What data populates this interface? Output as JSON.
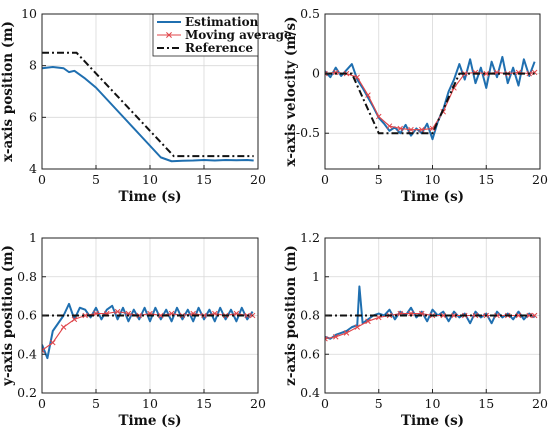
{
  "colors": {
    "estimation": "#1f6fb0",
    "moving_average": "#e0454a",
    "reference": "#111111",
    "grid": "#d8d8d8"
  },
  "legend": {
    "items": [
      {
        "label": "Estimation",
        "style": "solid-blue"
      },
      {
        "label": "Moving average",
        "style": "red-cross-line"
      },
      {
        "label": "Reference",
        "style": "black-dash-dot"
      }
    ]
  },
  "chart_data": [
    {
      "type": "line",
      "xlabel": "Time (s)",
      "ylabel": "x-axis position (m)",
      "xlim": [
        0,
        20
      ],
      "ylim": [
        4,
        10
      ],
      "xticks": [
        0,
        5,
        10,
        15,
        20
      ],
      "yticks": [
        4,
        6,
        8,
        10
      ],
      "grid": true,
      "legend_position": "top-right",
      "series": [
        {
          "name": "Estimation",
          "x": [
            0,
            1,
            2,
            2.5,
            3,
            4,
            5,
            6,
            7,
            8,
            9,
            10,
            11,
            12,
            13,
            14,
            15,
            16,
            17,
            18,
            19,
            19.6
          ],
          "values": [
            7.9,
            7.95,
            7.9,
            7.75,
            7.8,
            7.5,
            7.15,
            6.7,
            6.25,
            5.8,
            5.35,
            4.9,
            4.45,
            4.3,
            4.32,
            4.33,
            4.35,
            4.33,
            4.35,
            4.34,
            4.35,
            4.33
          ]
        },
        {
          "name": "Reference",
          "x": [
            0,
            3.2,
            12.2,
            19.6
          ],
          "values": [
            8.5,
            8.5,
            4.5,
            4.5
          ]
        }
      ]
    },
    {
      "type": "line",
      "xlabel": "Time (s)",
      "ylabel": "x-axis velocity (m/s)",
      "xlim": [
        0,
        20
      ],
      "ylim": [
        -0.8,
        0.5
      ],
      "xticks": [
        0,
        5,
        10,
        15,
        20
      ],
      "yticks": [
        -0.5,
        0,
        0.5
      ],
      "grid": true,
      "series": [
        {
          "name": "Estimation",
          "x": [
            0,
            0.5,
            1,
            1.5,
            2,
            2.5,
            3,
            3.5,
            4,
            4.5,
            5,
            5.5,
            6,
            6.5,
            7,
            7.5,
            8,
            8.5,
            9,
            9.5,
            10,
            10.5,
            11,
            11.5,
            12,
            12.5,
            13,
            13.5,
            14,
            14.5,
            15,
            15.5,
            16,
            16.5,
            17,
            17.5,
            18,
            18.5,
            19,
            19.5
          ],
          "values": [
            0.02,
            -0.03,
            0.05,
            -0.02,
            0.03,
            0.08,
            -0.05,
            -0.12,
            -0.2,
            -0.28,
            -0.37,
            -0.42,
            -0.48,
            -0.45,
            -0.5,
            -0.43,
            -0.52,
            -0.46,
            -0.5,
            -0.42,
            -0.55,
            -0.4,
            -0.3,
            -0.15,
            -0.05,
            0.08,
            -0.05,
            0.12,
            -0.08,
            0.05,
            -0.12,
            0.1,
            -0.03,
            0.14,
            -0.08,
            0.05,
            -0.1,
            0.12,
            -0.02,
            0.1
          ]
        },
        {
          "name": "Moving average",
          "x": [
            0,
            1,
            2,
            3,
            4,
            5,
            6,
            7,
            8,
            9,
            10,
            11,
            12,
            13,
            14,
            15,
            16,
            17,
            18,
            19,
            19.5
          ],
          "values": [
            0,
            0.01,
            0,
            -0.03,
            -0.18,
            -0.36,
            -0.44,
            -0.46,
            -0.47,
            -0.47,
            -0.46,
            -0.32,
            -0.12,
            0.0,
            0.01,
            0.0,
            0.01,
            0.0,
            0.01,
            0.0,
            0.01
          ]
        },
        {
          "name": "Reference",
          "x": [
            0,
            2.5,
            5,
            10,
            12.5,
            19.5
          ],
          "values": [
            0,
            0,
            -0.5,
            -0.5,
            0,
            0
          ]
        }
      ]
    },
    {
      "type": "line",
      "xlabel": "Time (s)",
      "ylabel": "y-axis position (m)",
      "xlim": [
        0,
        20
      ],
      "ylim": [
        0.2,
        1
      ],
      "xticks": [
        0,
        5,
        10,
        15,
        20
      ],
      "yticks": [
        0.2,
        0.4,
        0.6,
        0.8,
        1
      ],
      "grid": true,
      "series": [
        {
          "name": "Estimation",
          "x": [
            0,
            0.5,
            1,
            1.5,
            2,
            2.5,
            3,
            3.5,
            4,
            4.5,
            5,
            5.5,
            6,
            6.5,
            7,
            7.5,
            8,
            8.5,
            9,
            9.5,
            10,
            10.5,
            11,
            11.5,
            12,
            12.5,
            13,
            13.5,
            14,
            14.5,
            15,
            15.5,
            16,
            16.5,
            17,
            17.5,
            18,
            18.5,
            19,
            19.5
          ],
          "values": [
            0.45,
            0.38,
            0.52,
            0.56,
            0.6,
            0.66,
            0.58,
            0.64,
            0.63,
            0.59,
            0.64,
            0.58,
            0.63,
            0.65,
            0.58,
            0.64,
            0.57,
            0.63,
            0.58,
            0.64,
            0.57,
            0.64,
            0.58,
            0.63,
            0.57,
            0.64,
            0.58,
            0.63,
            0.57,
            0.64,
            0.58,
            0.63,
            0.57,
            0.64,
            0.58,
            0.63,
            0.57,
            0.64,
            0.58,
            0.62
          ]
        },
        {
          "name": "Moving average",
          "x": [
            0,
            1,
            2,
            3,
            4,
            5,
            6,
            7,
            8,
            9,
            10,
            11,
            12,
            13,
            14,
            15,
            16,
            17,
            18,
            19,
            19.5
          ],
          "values": [
            0.42,
            0.46,
            0.54,
            0.58,
            0.6,
            0.61,
            0.61,
            0.62,
            0.61,
            0.6,
            0.61,
            0.6,
            0.61,
            0.6,
            0.61,
            0.6,
            0.61,
            0.6,
            0.61,
            0.6,
            0.6
          ]
        },
        {
          "name": "Reference",
          "x": [
            0,
            19.5
          ],
          "values": [
            0.6,
            0.6
          ]
        }
      ]
    },
    {
      "type": "line",
      "xlabel": "Time (s)",
      "ylabel": "z-axis position (m)",
      "xlim": [
        0,
        20
      ],
      "ylim": [
        0.4,
        1.2
      ],
      "xticks": [
        0,
        5,
        10,
        15,
        20
      ],
      "yticks": [
        0.4,
        0.6,
        0.8,
        1,
        1.2
      ],
      "grid": true,
      "series": [
        {
          "name": "Estimation",
          "x": [
            0,
            0.5,
            1,
            1.5,
            2,
            2.5,
            3,
            3.2,
            3.5,
            4,
            4.5,
            5,
            5.5,
            6,
            6.5,
            7,
            7.5,
            8,
            8.5,
            9,
            9.5,
            10,
            10.5,
            11,
            11.5,
            12,
            12.5,
            13,
            13.5,
            14,
            14.5,
            15,
            15.5,
            16,
            16.5,
            17,
            17.5,
            18,
            18.5,
            19,
            19.5
          ],
          "values": [
            0.69,
            0.68,
            0.7,
            0.71,
            0.72,
            0.74,
            0.75,
            0.95,
            0.76,
            0.78,
            0.8,
            0.81,
            0.8,
            0.83,
            0.78,
            0.82,
            0.8,
            0.84,
            0.79,
            0.82,
            0.77,
            0.83,
            0.8,
            0.82,
            0.77,
            0.82,
            0.79,
            0.81,
            0.76,
            0.82,
            0.79,
            0.81,
            0.76,
            0.82,
            0.79,
            0.81,
            0.78,
            0.82,
            0.78,
            0.81,
            0.79
          ]
        },
        {
          "name": "Moving average",
          "x": [
            0,
            1,
            2,
            3,
            4,
            5,
            6,
            7,
            8,
            9,
            10,
            11,
            12,
            13,
            14,
            15,
            16,
            17,
            18,
            19,
            19.5
          ],
          "values": [
            0.68,
            0.69,
            0.71,
            0.74,
            0.77,
            0.79,
            0.8,
            0.81,
            0.81,
            0.81,
            0.8,
            0.8,
            0.8,
            0.8,
            0.8,
            0.8,
            0.8,
            0.8,
            0.8,
            0.8,
            0.8
          ]
        },
        {
          "name": "Reference",
          "x": [
            0,
            19.5
          ],
          "values": [
            0.8,
            0.8
          ]
        }
      ]
    }
  ]
}
